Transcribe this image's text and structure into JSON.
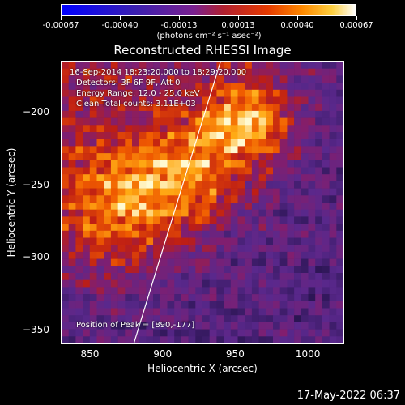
{
  "colorbar": {
    "ticks": [
      "-0.00067",
      "-0.00040",
      "-0.00013",
      "0.00013",
      "0.00040",
      "0.00067"
    ],
    "unit": "(photons cm⁻² s⁻¹ asec⁻²)"
  },
  "chart_data": {
    "type": "heatmap",
    "title": "Reconstructed RHESSI Image",
    "xlabel": "Heliocentric X (arcsec)",
    "ylabel": "Heliocentric Y (arcsec)",
    "xlim": [
      830,
      1025
    ],
    "ylim": [
      -360,
      -165
    ],
    "xticks": [
      "850",
      "900",
      "950",
      "1000"
    ],
    "yticks": [
      "-200",
      "-250",
      "-300",
      "-350"
    ],
    "color_range": [
      -0.00067,
      0.00067
    ],
    "limb_line": {
      "x": [
        880,
        940
      ],
      "y": [
        -360,
        -165
      ]
    },
    "annotations": {
      "time_range": "16-Sep-2014 18:23:20.000 to 18:29:20.000",
      "detectors": "Detectors: 3F 6F 9F, Att 0",
      "energy": "Energy Range: 12.0 - 25.0 keV",
      "clean": "Clean    Total counts: 3.11E+03",
      "peak": "Position of Peak = [890,-177]"
    }
  },
  "timestamp": "17-May-2022 06:37"
}
